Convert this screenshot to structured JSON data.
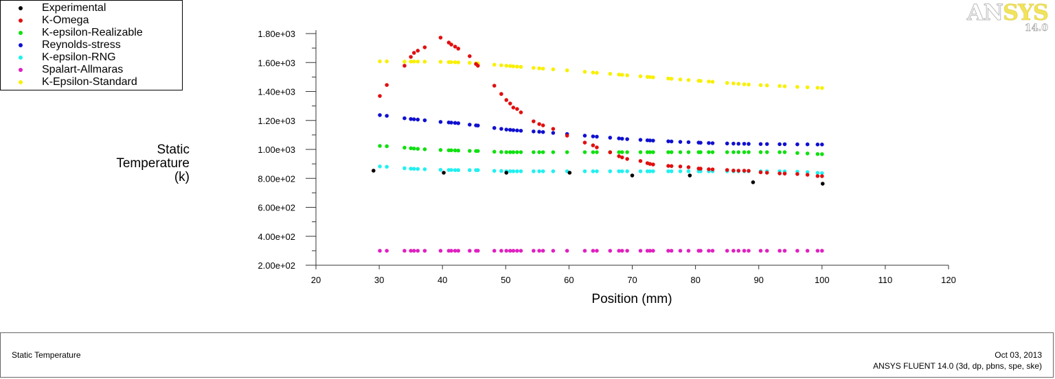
{
  "logo": {
    "brand_a": "AN",
    "brand_b": "SYS",
    "version": "14.0"
  },
  "footer": {
    "title": "Static Temperature",
    "date": "Oct 03, 2013",
    "solver": "ANSYS FLUENT 14.0 (3d, dp, pbns, spe, ske)"
  },
  "chart_data": {
    "type": "scatter",
    "title": "",
    "xlabel": "Position (mm)",
    "ylabel": [
      "Static",
      "Temperature",
      "(k)"
    ],
    "xlim": [
      20,
      120
    ],
    "ylim": [
      200,
      1800
    ],
    "xticks": [
      "20",
      "30",
      "40",
      "50",
      "60",
      "70",
      "80",
      "90",
      "100",
      "110",
      "120"
    ],
    "yticks": [
      "2.00e+02",
      "4.00e+02",
      "6.00e+02",
      "8.00e+02",
      "1.00e+03",
      "1.20e+03",
      "1.40e+03",
      "1.60e+03",
      "1.80e+03"
    ],
    "grid": false,
    "legend_placement": "top-left",
    "shared_x": [
      30.1,
      31.2,
      34.0,
      35.0,
      35.5,
      36.1,
      37.2,
      39.7,
      41.0,
      41.4,
      42.0,
      42.5,
      44.3,
      45.3,
      45.6,
      48.2,
      49.3,
      50.1,
      50.7,
      51.2,
      51.8,
      52.4,
      54.4,
      55.3,
      55.9,
      57.5,
      59.7,
      62.5,
      63.8,
      64.4,
      66.5,
      67.9,
      68.4,
      69.2,
      71.3,
      72.4,
      72.8,
      73.3,
      75.7,
      76.2,
      77.6,
      78.9,
      80.5,
      80.8,
      82.1,
      82.7,
      85.0,
      86.0,
      86.8,
      87.7,
      88.4,
      90.3,
      91.3,
      93.3,
      94.1,
      96.1,
      97.7,
      99.3,
      100.0
    ],
    "series": [
      {
        "name": "Experimental",
        "color": "#000000",
        "x": [
          29.1,
          40.2,
          50.1,
          60.1,
          70.0,
          79.1,
          89.1,
          100.1
        ],
        "y": [
          853,
          839,
          839,
          839,
          820,
          820,
          773,
          763
        ]
      },
      {
        "name": "K-Omega",
        "color": "#e01010",
        "y": [
          1369,
          1445,
          1578,
          1639,
          1667,
          1682,
          1705,
          1772,
          1738,
          1724,
          1710,
          1696,
          1644,
          1590,
          1578,
          1440,
          1383,
          1341,
          1317,
          1289,
          1279,
          1256,
          1194,
          1175,
          1166,
          1142,
          1095,
          1047,
          1028,
          1014,
          980,
          953,
          945,
          934,
          920,
          905,
          900,
          896,
          886,
          885,
          882,
          877,
          868,
          867,
          863,
          862,
          858,
          854,
          853,
          853,
          852,
          842,
          839,
          834,
          833,
          830,
          825,
          816,
          815
        ]
      },
      {
        "name": "K-epsilon-Realizable",
        "color": "#10e010",
        "y": [
          1024,
          1022,
          1012,
          1008,
          1006,
          1004,
          1001,
          996,
          994,
          994,
          993,
          992,
          990,
          989,
          989,
          984,
          982,
          981,
          981,
          981,
          981,
          981,
          981,
          981,
          981,
          981,
          981,
          981,
          981,
          981,
          981,
          981,
          981,
          981,
          981,
          981,
          981,
          981,
          981,
          981,
          981,
          981,
          981,
          981,
          981,
          981,
          981,
          981,
          981,
          981,
          981,
          981,
          981,
          981,
          981,
          975,
          972,
          968,
          967
        ]
      },
      {
        "name": "Reynolds-stress",
        "color": "#1010d0",
        "y": [
          1237,
          1232,
          1215,
          1210,
          1208,
          1206,
          1201,
          1190,
          1186,
          1185,
          1183,
          1181,
          1171,
          1166,
          1165,
          1148,
          1142,
          1137,
          1135,
          1133,
          1131,
          1129,
          1124,
          1122,
          1120,
          1114,
          1106,
          1095,
          1090,
          1088,
          1081,
          1076,
          1074,
          1071,
          1066,
          1063,
          1062,
          1061,
          1056,
          1055,
          1052,
          1050,
          1047,
          1046,
          1044,
          1043,
          1041,
          1040,
          1039,
          1039,
          1038,
          1037,
          1037,
          1036,
          1036,
          1035,
          1035,
          1034,
          1034
        ]
      },
      {
        "name": "K-epsilon-RNG",
        "color": "#20f0f0",
        "y": [
          882,
          880,
          870,
          867,
          866,
          865,
          863,
          859,
          858,
          858,
          857,
          857,
          857,
          857,
          857,
          852,
          851,
          849,
          849,
          849,
          849,
          849,
          849,
          849,
          849,
          849,
          849,
          849,
          849,
          849,
          849,
          849,
          849,
          849,
          849,
          849,
          849,
          849,
          849,
          849,
          849,
          849,
          849,
          849,
          849,
          849,
          849,
          849,
          849,
          849,
          849,
          849,
          849,
          849,
          848,
          846,
          843,
          838,
          836
        ]
      },
      {
        "name": "Spalart-Allmaras",
        "color": "#e020c0",
        "y": [
          300,
          300,
          300,
          300,
          300,
          300,
          300,
          300,
          300,
          300,
          300,
          300,
          300,
          300,
          300,
          300,
          300,
          300,
          300,
          300,
          300,
          300,
          300,
          300,
          300,
          300,
          300,
          300,
          300,
          300,
          300,
          300,
          300,
          300,
          300,
          300,
          300,
          300,
          300,
          300,
          300,
          300,
          300,
          300,
          300,
          300,
          300,
          300,
          300,
          300,
          300,
          300,
          300,
          300,
          300,
          300,
          300,
          300,
          300
        ]
      },
      {
        "name": "K-Epsilon-Standard",
        "color": "#f8f000",
        "y": [
          1608,
          1608,
          1606,
          1607,
          1607,
          1607,
          1606,
          1605,
          1603,
          1603,
          1602,
          1601,
          1598,
          1595,
          1594,
          1585,
          1581,
          1578,
          1576,
          1574,
          1572,
          1570,
          1563,
          1560,
          1558,
          1553,
          1546,
          1536,
          1531,
          1529,
          1522,
          1517,
          1515,
          1512,
          1505,
          1501,
          1500,
          1498,
          1490,
          1488,
          1483,
          1479,
          1474,
          1473,
          1469,
          1467,
          1459,
          1456,
          1453,
          1450,
          1448,
          1444,
          1442,
          1438,
          1436,
          1432,
          1429,
          1426,
          1424
        ]
      }
    ]
  }
}
